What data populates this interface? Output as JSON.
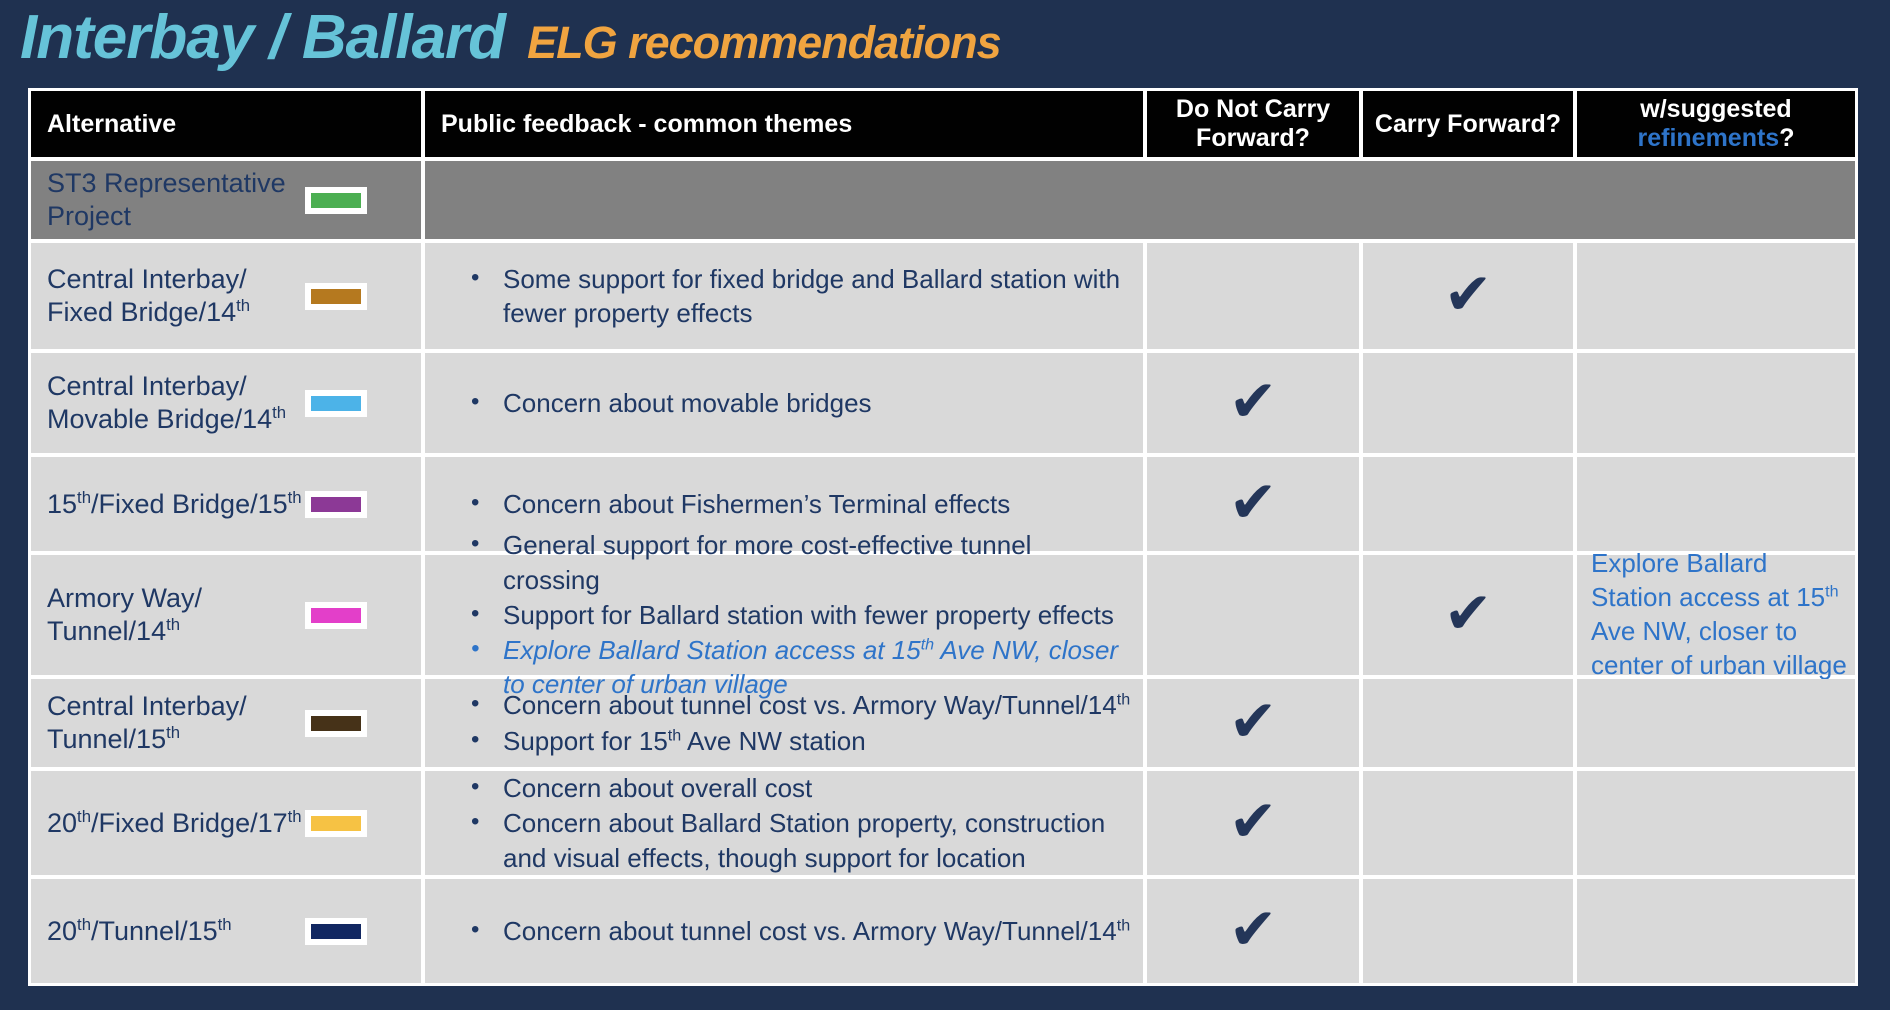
{
  "title": {
    "main": "Interbay / Ballard",
    "sub": "ELG recommendations"
  },
  "colors": {
    "background": "#1f3150",
    "title_main": "#66c3d8",
    "title_sub": "#f0a440",
    "header_bg": "#010101",
    "body_text": "#1f3864",
    "accent_blue": "#2e74c9",
    "row_gray": "#818181",
    "cell_gray": "#d9d9d9",
    "checkmark": "#243659"
  },
  "icons": {
    "checkmark": "✔"
  },
  "table": {
    "headers": {
      "alternative": "Alternative",
      "feedback": "Public feedback - common themes",
      "do_not_carry": "Do Not Carry\nForward?",
      "carry": "Carry Forward?",
      "refinements_line1": "w/suggested",
      "refinements_word": "refinements",
      "refinements_question": "?"
    },
    "rows": [
      {
        "alternative": "ST3 Representative\nProject",
        "swatch": "#4caf52",
        "feedback": [],
        "do_not_carry": "",
        "carry": "",
        "refinement": ""
      },
      {
        "alternative": "Central Interbay/\nFixed Bridge/14^th^",
        "swatch": "#b5791f",
        "feedback": [
          {
            "text": "Some support for fixed bridge and Ballard station with fewer property effects",
            "emphasis": false
          }
        ],
        "do_not_carry": "",
        "carry": "✔",
        "refinement": ""
      },
      {
        "alternative": "Central Interbay/\nMovable Bridge/14^th^",
        "swatch": "#4cb3e8",
        "feedback": [
          {
            "text": "Concern about movable bridges",
            "emphasis": false
          }
        ],
        "do_not_carry": "✔",
        "carry": "",
        "refinement": ""
      },
      {
        "alternative": "15^th^/Fixed Bridge/15^th^",
        "swatch": "#8c3996",
        "feedback": [
          {
            "text": "Concern about Fishermen’s Terminal effects",
            "emphasis": false
          }
        ],
        "do_not_carry": "✔",
        "carry": "",
        "refinement": ""
      },
      {
        "alternative": "Armory Way/\nTunnel/14^th^",
        "swatch": "#e33fc9",
        "feedback": [
          {
            "text": "General support for more cost-effective tunnel crossing",
            "emphasis": false
          },
          {
            "text": "Support for Ballard station with fewer property effects",
            "emphasis": false
          },
          {
            "text": "Explore Ballard Station access at 15^th^ Ave NW, closer to center of urban village",
            "emphasis": true
          }
        ],
        "do_not_carry": "",
        "carry": "✔",
        "refinement": "Explore Ballard Station access at 15^th^ Ave NW, closer to center of urban village"
      },
      {
        "alternative": "Central Interbay/\nTunnel/15^th^",
        "swatch": "#463218",
        "feedback": [
          {
            "text": "Concern about tunnel cost vs. Armory Way/Tunnel/14^th^",
            "emphasis": false
          },
          {
            "text": "Support for 15^th^ Ave NW station",
            "emphasis": false
          }
        ],
        "do_not_carry": "✔",
        "carry": "",
        "refinement": ""
      },
      {
        "alternative": "20^th^/Fixed Bridge/17^th^",
        "swatch": "#f6c244",
        "feedback": [
          {
            "text": "Concern about overall cost",
            "emphasis": false
          },
          {
            "text": "Concern about Ballard Station property, construction and visual effects, though support for location",
            "emphasis": false
          }
        ],
        "do_not_carry": "✔",
        "carry": "",
        "refinement": ""
      },
      {
        "alternative": "20^th^/Tunnel/15^th^",
        "swatch": "#112761",
        "feedback": [
          {
            "text": "Concern about tunnel cost vs. Armory Way/Tunnel/14^th^",
            "emphasis": false
          }
        ],
        "do_not_carry": "✔",
        "carry": "",
        "refinement": ""
      }
    ]
  }
}
